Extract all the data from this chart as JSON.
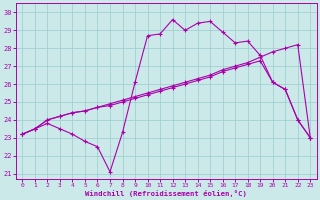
{
  "xlabel": "Windchill (Refroidissement éolien,°C)",
  "background_color": "#cce9ea",
  "line_color": "#aa00aa",
  "grid_color": "#99cccc",
  "xlim": [
    -0.5,
    23.5
  ],
  "ylim": [
    20.7,
    30.5
  ],
  "xticks": [
    0,
    1,
    2,
    3,
    4,
    5,
    6,
    7,
    8,
    9,
    10,
    11,
    12,
    13,
    14,
    15,
    16,
    17,
    18,
    19,
    20,
    21,
    22,
    23
  ],
  "yticks": [
    21,
    22,
    23,
    24,
    25,
    26,
    27,
    28,
    29,
    30
  ],
  "line1_x": [
    0,
    1,
    2,
    3,
    4,
    5,
    6,
    7,
    8,
    9,
    10,
    11,
    12,
    13,
    14,
    15,
    16,
    17,
    18,
    19,
    20,
    21,
    22,
    23
  ],
  "line1_y": [
    23.2,
    23.5,
    23.8,
    23.5,
    23.2,
    22.8,
    22.5,
    21.1,
    23.3,
    26.1,
    28.7,
    28.8,
    29.6,
    29.0,
    29.4,
    29.5,
    28.9,
    28.3,
    28.4,
    27.6,
    26.1,
    25.7,
    24.0,
    23.0
  ],
  "line2_x": [
    0,
    1,
    2,
    3,
    4,
    5,
    6,
    7,
    8,
    9,
    10,
    11,
    12,
    13,
    14,
    15,
    16,
    17,
    18,
    19,
    20,
    21,
    22,
    23
  ],
  "line2_y": [
    23.2,
    23.5,
    24.0,
    24.2,
    24.4,
    24.5,
    24.7,
    24.8,
    25.0,
    25.2,
    25.4,
    25.6,
    25.8,
    26.0,
    26.2,
    26.4,
    26.7,
    26.9,
    27.1,
    27.3,
    26.1,
    25.7,
    24.0,
    23.0
  ],
  "line3_x": [
    0,
    1,
    2,
    3,
    4,
    5,
    6,
    7,
    8,
    9,
    10,
    11,
    12,
    13,
    14,
    15,
    16,
    17,
    18,
    19,
    20,
    21,
    22,
    23
  ],
  "line3_y": [
    23.2,
    23.5,
    24.0,
    24.2,
    24.4,
    24.5,
    24.7,
    24.9,
    25.1,
    25.3,
    25.5,
    25.7,
    25.9,
    26.1,
    26.3,
    26.5,
    26.8,
    27.0,
    27.2,
    27.5,
    27.8,
    28.0,
    28.2,
    23.0
  ],
  "figsize": [
    3.2,
    2.0
  ],
  "dpi": 100
}
